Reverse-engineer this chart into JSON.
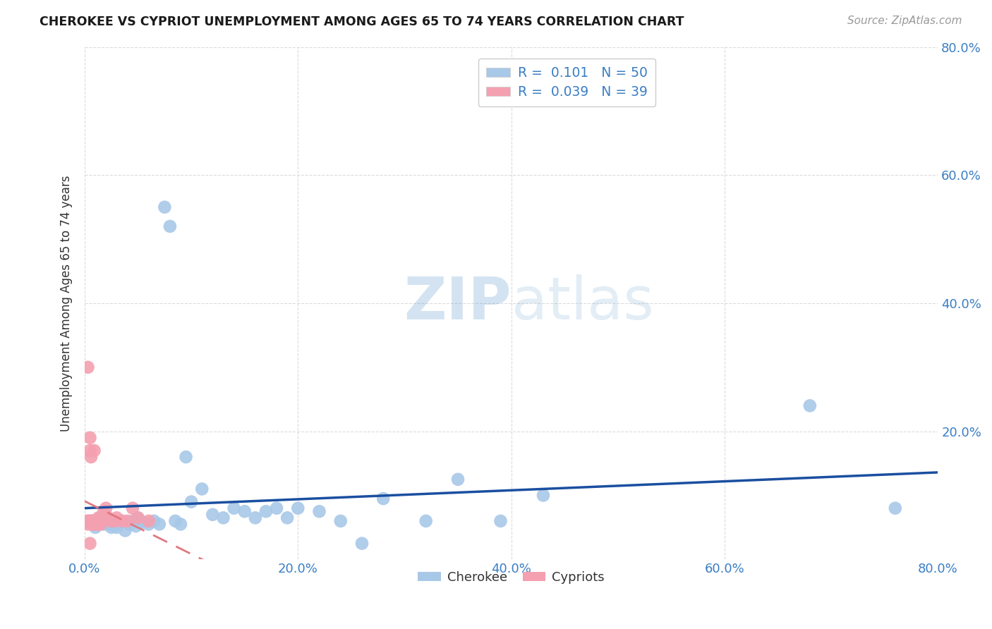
{
  "title": "CHEROKEE VS CYPRIOT UNEMPLOYMENT AMONG AGES 65 TO 74 YEARS CORRELATION CHART",
  "source": "Source: ZipAtlas.com",
  "ylabel": "Unemployment Among Ages 65 to 74 years",
  "xlim": [
    0.0,
    0.8
  ],
  "ylim": [
    0.0,
    0.8
  ],
  "xticks": [
    0.0,
    0.2,
    0.4,
    0.6,
    0.8
  ],
  "yticks": [
    0.0,
    0.2,
    0.4,
    0.6,
    0.8
  ],
  "xticklabels": [
    "0.0%",
    "20.0%",
    "40.0%",
    "60.0%",
    "80.0%"
  ],
  "yticklabels": [
    "",
    "20.0%",
    "40.0%",
    "60.0%",
    "80.0%"
  ],
  "cherokee_R": 0.101,
  "cherokee_N": 50,
  "cypriot_R": 0.039,
  "cypriot_N": 39,
  "cherokee_color": "#a8c8e8",
  "cypriot_color": "#f4a0b0",
  "cherokee_line_color": "#1a4fa0",
  "cypriot_line_color": "#e07880",
  "watermark_color": "#c8dff0",
  "background_color": "#ffffff",
  "grid_color": "#cccccc",
  "cherokee_x": [
    0.005,
    0.008,
    0.01,
    0.012,
    0.015,
    0.018,
    0.02,
    0.022,
    0.025,
    0.025,
    0.028,
    0.03,
    0.032,
    0.035,
    0.038,
    0.04,
    0.042,
    0.045,
    0.048,
    0.05,
    0.055,
    0.06,
    0.065,
    0.07,
    0.075,
    0.08,
    0.085,
    0.09,
    0.095,
    0.1,
    0.11,
    0.12,
    0.13,
    0.14,
    0.15,
    0.16,
    0.17,
    0.18,
    0.19,
    0.2,
    0.22,
    0.24,
    0.26,
    0.28,
    0.32,
    0.35,
    0.39,
    0.43,
    0.68,
    0.76
  ],
  "cherokee_y": [
    0.06,
    0.055,
    0.05,
    0.06,
    0.065,
    0.055,
    0.06,
    0.055,
    0.06,
    0.05,
    0.058,
    0.05,
    0.055,
    0.06,
    0.045,
    0.058,
    0.055,
    0.06,
    0.052,
    0.065,
    0.058,
    0.055,
    0.06,
    0.055,
    0.55,
    0.52,
    0.06,
    0.055,
    0.16,
    0.09,
    0.11,
    0.07,
    0.065,
    0.08,
    0.075,
    0.065,
    0.075,
    0.08,
    0.065,
    0.08,
    0.075,
    0.06,
    0.025,
    0.095,
    0.06,
    0.125,
    0.06,
    0.1,
    0.24,
    0.08
  ],
  "cypriot_x": [
    0.002,
    0.003,
    0.004,
    0.005,
    0.005,
    0.006,
    0.006,
    0.007,
    0.007,
    0.008,
    0.008,
    0.009,
    0.009,
    0.01,
    0.01,
    0.01,
    0.011,
    0.011,
    0.012,
    0.012,
    0.013,
    0.013,
    0.014,
    0.015,
    0.015,
    0.016,
    0.018,
    0.02,
    0.022,
    0.025,
    0.028,
    0.03,
    0.035,
    0.04,
    0.045,
    0.05,
    0.06,
    0.003,
    0.005
  ],
  "cypriot_y": [
    0.06,
    0.055,
    0.06,
    0.17,
    0.19,
    0.06,
    0.16,
    0.055,
    0.06,
    0.06,
    0.055,
    0.06,
    0.17,
    0.06,
    0.055,
    0.06,
    0.055,
    0.06,
    0.055,
    0.06,
    0.06,
    0.065,
    0.06,
    0.055,
    0.06,
    0.06,
    0.075,
    0.08,
    0.065,
    0.06,
    0.06,
    0.065,
    0.06,
    0.06,
    0.08,
    0.065,
    0.06,
    0.3,
    0.025
  ]
}
